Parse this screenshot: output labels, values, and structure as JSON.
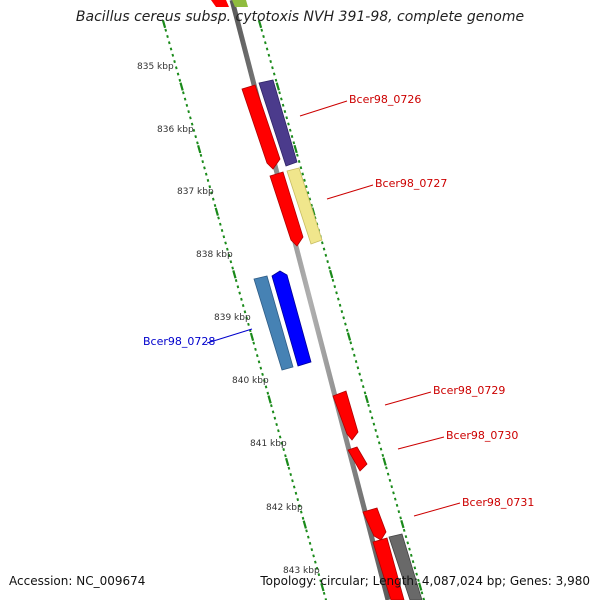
{
  "title": "Bacillus cereus subsp. cytotoxis NVH 391-98, complete genome",
  "accession": "Accession: NC_009674",
  "summary": "Topology: circular; Length: 4,087,024 bp; Genes: 3,980",
  "ticks": [
    "835 kbp",
    "836 kbp",
    "837 kbp",
    "838 kbp",
    "839 kbp",
    "840 kbp",
    "841 kbp",
    "842 kbp",
    "843 kbp"
  ],
  "genes": [
    {
      "name": "Bcer98_0726",
      "color": "#cc0000"
    },
    {
      "name": "Bcer98_0727",
      "color": "#cc0000"
    },
    {
      "name": "Bcer98_0728",
      "color": "#0000cc"
    },
    {
      "name": "Bcer98_0729",
      "color": "#cc0000"
    },
    {
      "name": "Bcer98_0730",
      "color": "#cc0000"
    },
    {
      "name": "Bcer98_0731",
      "color": "#cc0000"
    }
  ],
  "colors": {
    "backbone": "#808080",
    "tick_green": "#1a8a1a",
    "cds_red": "#ff0000",
    "cds_blue": "#0000ff",
    "cog_purple": "#4b3b8c",
    "cog_yellow": "#f0e68c",
    "cog_steelblue": "#4682b4",
    "cog_gray": "#696969",
    "cog_olive": "#8fbc3f"
  }
}
